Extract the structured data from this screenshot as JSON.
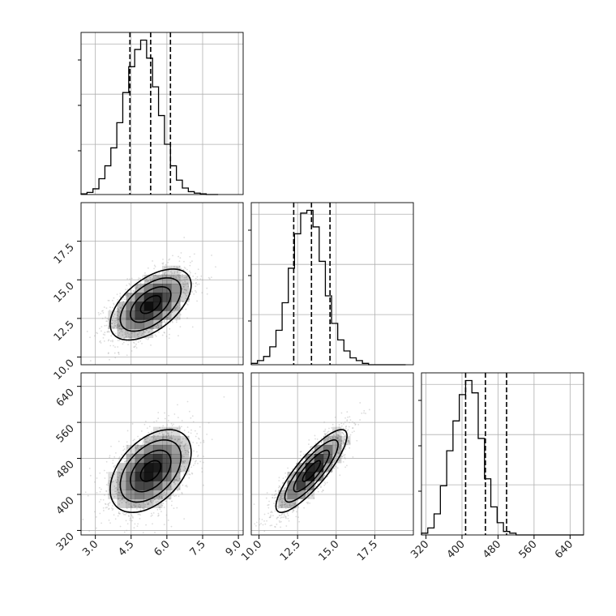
{
  "chart_data": {
    "type": "corner",
    "grid": true,
    "parameters": [
      {
        "key": "p1",
        "range": [
          2.4,
          9.2
        ],
        "ticks": [
          3.0,
          4.5,
          6.0,
          7.5,
          9.0
        ],
        "tick_labels": [
          "3.0",
          "4.5",
          "6.0",
          "7.5",
          "9.0"
        ],
        "quantiles": [
          4.45,
          5.32,
          6.15
        ],
        "hist_edges_step": 0.25,
        "hist_counts": [
          1,
          3,
          8,
          22,
          40,
          65,
          100,
          142,
          178,
          202,
          215,
          190,
          150,
          110,
          70,
          40,
          20,
          9,
          4,
          2,
          1,
          0,
          0
        ]
      },
      {
        "key": "p2",
        "range": [
          9.5,
          20.0
        ],
        "ticks": [
          10.0,
          12.5,
          15.0,
          17.5
        ],
        "tick_labels": [
          "10.0",
          "12.5",
          "15.0",
          "17.5"
        ],
        "quantiles": [
          12.25,
          13.4,
          14.6
        ],
        "hist_edges_step": 0.4,
        "hist_counts": [
          1,
          3,
          6,
          13,
          25,
          45,
          70,
          95,
          110,
          112,
          100,
          75,
          50,
          30,
          18,
          10,
          5,
          3,
          1,
          0,
          0,
          0,
          0,
          0,
          0
        ]
      },
      {
        "key": "p3",
        "range": [
          310,
          670
        ],
        "ticks": [
          320,
          400,
          480,
          560,
          640
        ],
        "tick_labels": [
          "320",
          "400",
          "480",
          "560",
          "640"
        ],
        "quantiles": [
          408,
          452,
          499
        ],
        "hist_edges_step": 14,
        "hist_counts": [
          1,
          4,
          12,
          28,
          48,
          65,
          80,
          88,
          81,
          55,
          32,
          16,
          7,
          2,
          1,
          0,
          0,
          0,
          0,
          0,
          0,
          0,
          0,
          0,
          0,
          0
        ]
      }
    ],
    "pairs": [
      {
        "x": "p1",
        "y": "p2",
        "mean": [
          5.32,
          13.4
        ],
        "sd": [
          0.85,
          1.15
        ],
        "corr": 0.55,
        "contour_sigmas": [
          0.5,
          1.0,
          1.5,
          2.0
        ]
      },
      {
        "x": "p1",
        "y": "p3",
        "mean": [
          5.32,
          452
        ],
        "sd": [
          0.85,
          46
        ],
        "corr": 0.45,
        "contour_sigmas": [
          0.5,
          1.0,
          1.5,
          2.0
        ]
      },
      {
        "x": "p2",
        "y": "p3",
        "mean": [
          13.4,
          452
        ],
        "sd": [
          1.15,
          46
        ],
        "corr": 0.85,
        "contour_sigmas": [
          0.5,
          1.0,
          1.5,
          2.0
        ]
      }
    ],
    "colors": {
      "line": "#000000",
      "grid": "#b0b0b0",
      "points": "#9a9a9a",
      "density": "#000000"
    }
  }
}
